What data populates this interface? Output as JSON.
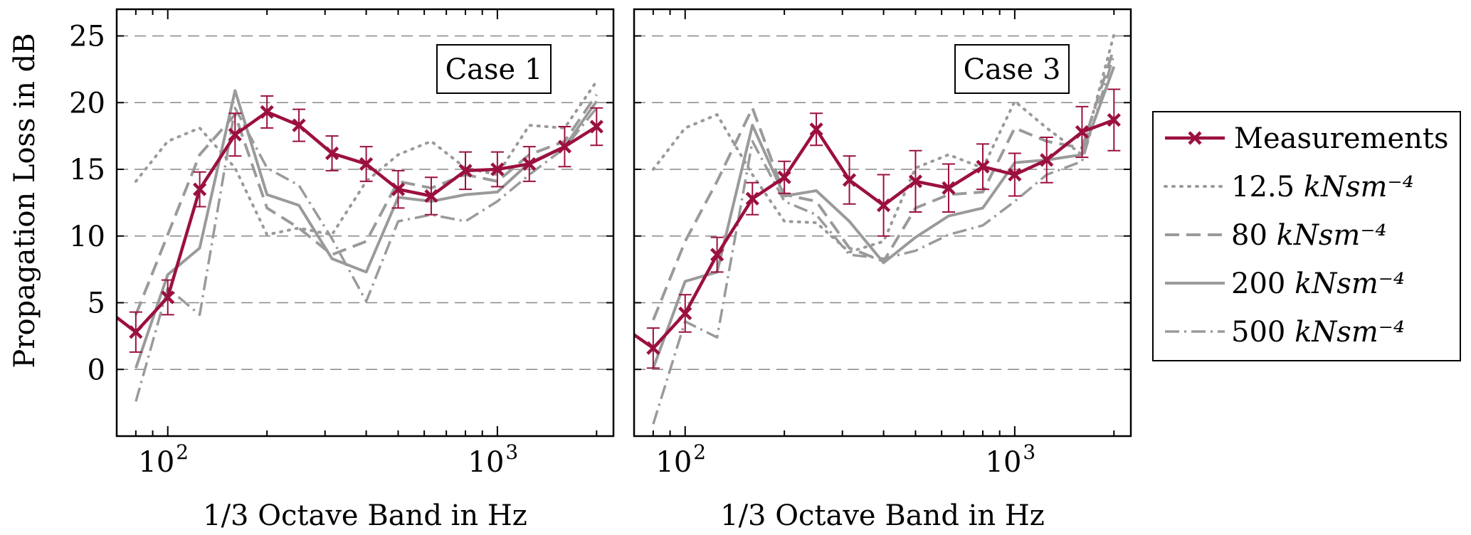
{
  "colors": {
    "measurement": "#9b1040",
    "model": "#9a9a9a",
    "grid": "#888888",
    "frame": "#000000"
  },
  "chart_data": [
    {
      "type": "line",
      "panel_label": "Case 1",
      "xlabel": "1/3 Octave Band in Hz",
      "ylabel": "Propagation Loss in dB",
      "xscale": "log",
      "xlim": [
        70,
        2250
      ],
      "ylim": [
        -5,
        27
      ],
      "yticks": [
        0,
        5,
        10,
        15,
        20,
        25
      ],
      "xticks": [
        {
          "value": 100,
          "base": "10",
          "exp": "2"
        },
        {
          "value": 1000,
          "base": "10",
          "exp": "3"
        }
      ],
      "grid": "horizontal dashed",
      "x": [
        80,
        100,
        125,
        160,
        200,
        250,
        315,
        400,
        500,
        630,
        800,
        1000,
        1250,
        1600,
        2000
      ],
      "series": [
        {
          "name": "Measurements",
          "style": "measurement",
          "values": [
            2.8,
            5.4,
            13.5,
            17.6,
            19.3,
            18.3,
            16.2,
            15.4,
            13.5,
            13.0,
            14.9,
            15.0,
            15.4,
            16.7,
            18.2
          ],
          "err": [
            1.5,
            1.3,
            1.3,
            1.6,
            1.2,
            1.2,
            1.3,
            1.3,
            1.4,
            1.4,
            1.4,
            1.3,
            1.3,
            1.5,
            1.4
          ],
          "lead_in": [
            {
              "x": 70,
              "y": 3.9
            }
          ]
        },
        {
          "name": "12.5 kNsm⁻⁴",
          "style": "dotted",
          "values": [
            14.1,
            17.1,
            18.1,
            15.1,
            10.1,
            10.6,
            10.1,
            14.1,
            16.1,
            17.1,
            15.1,
            14.6,
            18.3,
            18.1,
            21.6
          ]
        },
        {
          "name": "80 kNsm⁻⁴",
          "style": "dashed",
          "values": [
            4.1,
            10.1,
            16.1,
            19.1,
            12.1,
            10.6,
            8.6,
            9.6,
            14.1,
            13.6,
            14.6,
            14.1,
            16.1,
            17.1,
            20.6
          ]
        },
        {
          "name": "200 kNsm⁻⁴",
          "style": "solid",
          "values": [
            0.1,
            7.1,
            9.1,
            20.9,
            13.1,
            12.3,
            8.3,
            7.3,
            12.9,
            12.6,
            13.1,
            13.3,
            15.5,
            16.7,
            20.1
          ]
        },
        {
          "name": "500 kNsm⁻⁴",
          "style": "dashdot",
          "values": [
            -2.4,
            6.1,
            4.1,
            19.6,
            15.1,
            13.8,
            9.8,
            5.1,
            11.1,
            11.6,
            11.1,
            12.6,
            14.6,
            16.6,
            19.6
          ]
        }
      ]
    },
    {
      "type": "line",
      "panel_label": "Case 3",
      "xlabel": "1/3 Octave Band in Hz",
      "xscale": "log",
      "xlim": [
        70,
        2250
      ],
      "ylim": [
        -5,
        27
      ],
      "yticks": [
        0,
        5,
        10,
        15,
        20,
        25
      ],
      "xticks": [
        {
          "value": 100,
          "base": "10",
          "exp": "2"
        },
        {
          "value": 1000,
          "base": "10",
          "exp": "3"
        }
      ],
      "grid": "horizontal dashed",
      "x": [
        80,
        100,
        125,
        160,
        200,
        250,
        315,
        400,
        500,
        630,
        800,
        1000,
        1250,
        1600,
        2000
      ],
      "series": [
        {
          "name": "Measurements",
          "style": "measurement",
          "values": [
            1.6,
            4.2,
            8.6,
            12.8,
            14.4,
            18.0,
            14.2,
            12.3,
            14.1,
            13.6,
            15.2,
            14.6,
            15.7,
            17.8,
            18.7
          ],
          "err": [
            1.5,
            1.4,
            1.3,
            1.2,
            1.2,
            1.2,
            1.8,
            2.3,
            2.3,
            1.8,
            1.7,
            1.6,
            1.7,
            1.9,
            2.3
          ],
          "lead_in": [
            {
              "x": 70,
              "y": 2.6
            }
          ]
        },
        {
          "name": "12.5 kNsm⁻⁴",
          "style": "dotted",
          "values": [
            15.0,
            18.1,
            19.1,
            14.6,
            11.1,
            11.0,
            8.8,
            9.6,
            15.1,
            16.1,
            15.1,
            20.1,
            18.1,
            16.1,
            25.1
          ]
        },
        {
          "name": "80 kNsm⁻⁴",
          "style": "dashed",
          "values": [
            3.7,
            9.6,
            14.1,
            19.6,
            13.1,
            12.6,
            9.1,
            8.1,
            12.1,
            13.1,
            13.3,
            18.1,
            17.1,
            16.6,
            24.1
          ]
        },
        {
          "name": "200 kNsm⁻⁴",
          "style": "solid",
          "values": [
            0.1,
            6.6,
            7.3,
            18.3,
            13.0,
            13.4,
            11.1,
            8.0,
            9.9,
            11.5,
            12.1,
            15.5,
            15.7,
            16.1,
            22.7
          ]
        },
        {
          "name": "500 kNsm⁻⁴",
          "style": "dashdot",
          "values": [
            -4.1,
            3.6,
            2.4,
            17.1,
            12.6,
            11.6,
            8.6,
            8.3,
            8.9,
            10.1,
            10.8,
            12.6,
            14.6,
            15.6,
            23.6
          ]
        }
      ]
    }
  ],
  "legend": {
    "position": "right",
    "entries": [
      {
        "label": "Measurements",
        "unit": "",
        "style": "measurement"
      },
      {
        "label": "12.5 ",
        "unit": "kNsm⁻⁴",
        "style": "dotted"
      },
      {
        "label": "80 ",
        "unit": "kNsm⁻⁴",
        "style": "dashed"
      },
      {
        "label": "200 ",
        "unit": "kNsm⁻⁴",
        "style": "solid"
      },
      {
        "label": "500 ",
        "unit": "kNsm⁻⁴",
        "style": "dashdot"
      }
    ]
  }
}
